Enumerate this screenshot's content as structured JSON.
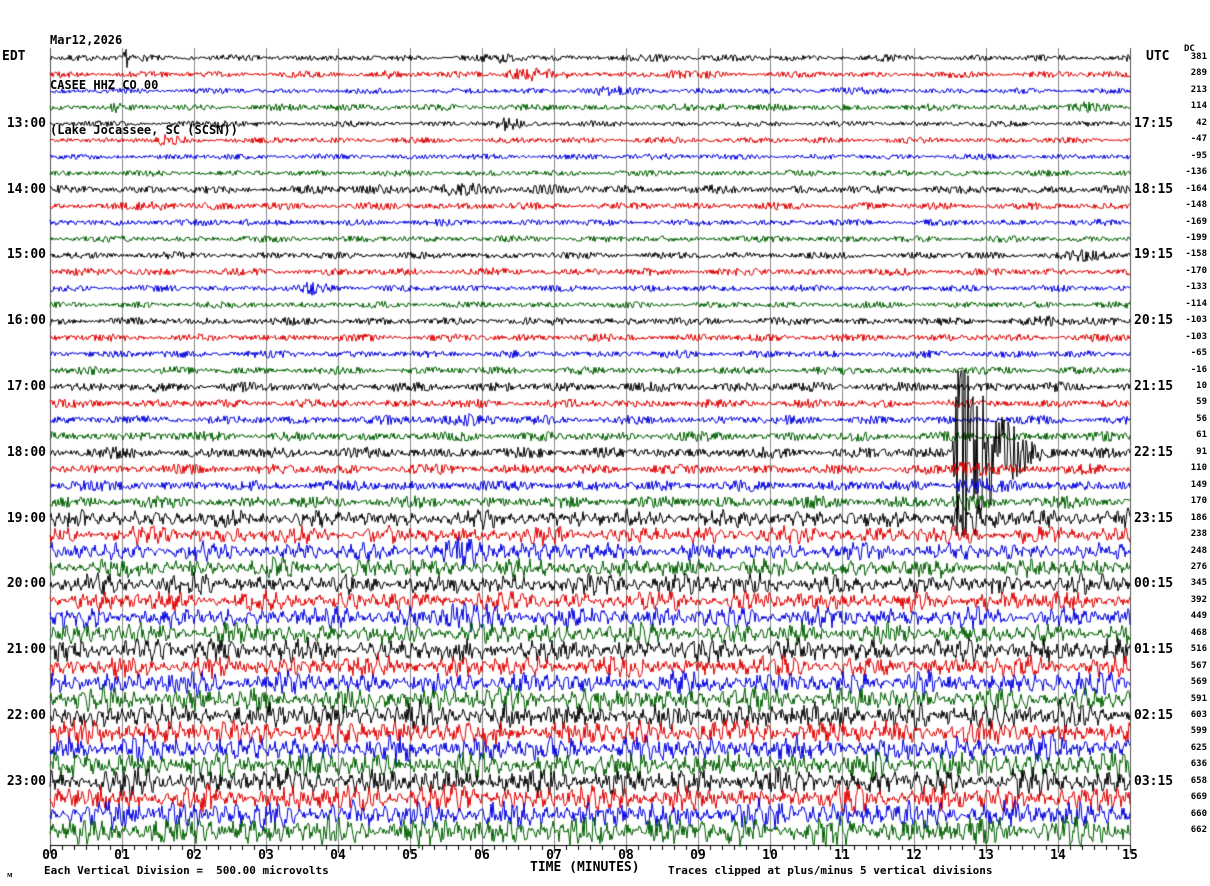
{
  "title": {
    "date": "Mar12,2026",
    "station": "CASEE HHZ CO 00",
    "location": "(Lake Jocassee, SC (SCSN))"
  },
  "axes": {
    "left_header": "EDT",
    "right_header": "UTC",
    "dc_header": "DC",
    "x_title": "TIME (MINUTES)",
    "x_tick_labels": [
      "00",
      "01",
      "02",
      "03",
      "04",
      "05",
      "06",
      "07",
      "08",
      "09",
      "10",
      "11",
      "12",
      "13",
      "14",
      "15"
    ]
  },
  "footer": {
    "scale": "Each Vertical Division =  500.00 microvolts",
    "clip": "Traces clipped at plus/minus 5 vertical divisions",
    "watermark": "ᴍ"
  },
  "colors": {
    "trace_cycle": [
      "#000000",
      "#e00000",
      "#0000e0",
      "#006000"
    ],
    "grid": "#8a8a8a",
    "border": "#555555",
    "axis": "#000000",
    "background": "#ffffff"
  },
  "chart_data": {
    "type": "line",
    "subtype": "helicorder-seismogram",
    "title": "CASEE HHZ CO 00 (Lake Jocassee, SC (SCSN)) Mar12,2026",
    "xlabel": "TIME (MINUTES)",
    "x_range": [
      0,
      15
    ],
    "minutes_per_line": 15,
    "lines_per_hour": 4,
    "vertical_division_microvolts": 500.0,
    "clip_divisions": 5,
    "grid": true,
    "local_timezone": "EDT",
    "utc_offset_note": "right labels are UTC end-of-line times",
    "rows": [
      {
        "edt": "",
        "utc": "",
        "dc": "381",
        "amp": 3.0
      },
      {
        "edt": "",
        "utc": "",
        "dc": "289",
        "amp": 3.0
      },
      {
        "edt": "",
        "utc": "",
        "dc": "213",
        "amp": 2.6
      },
      {
        "edt": "",
        "utc": "",
        "dc": "114",
        "amp": 3.0
      },
      {
        "edt": "13:00",
        "utc": "17:15",
        "dc": "42",
        "amp": 2.6
      },
      {
        "edt": "",
        "utc": "",
        "dc": "-47",
        "amp": 2.8
      },
      {
        "edt": "",
        "utc": "",
        "dc": "-95",
        "amp": 2.6
      },
      {
        "edt": "",
        "utc": "",
        "dc": "-136",
        "amp": 2.8
      },
      {
        "edt": "14:00",
        "utc": "18:15",
        "dc": "-164",
        "amp": 3.8
      },
      {
        "edt": "",
        "utc": "",
        "dc": "-148",
        "amp": 3.4
      },
      {
        "edt": "",
        "utc": "",
        "dc": "-169",
        "amp": 3.0
      },
      {
        "edt": "",
        "utc": "",
        "dc": "-199",
        "amp": 3.0
      },
      {
        "edt": "15:00",
        "utc": "19:15",
        "dc": "-158",
        "amp": 3.2
      },
      {
        "edt": "",
        "utc": "",
        "dc": "-170",
        "amp": 3.4
      },
      {
        "edt": "",
        "utc": "",
        "dc": "-133",
        "amp": 3.0
      },
      {
        "edt": "",
        "utc": "",
        "dc": "-114",
        "amp": 3.0
      },
      {
        "edt": "16:00",
        "utc": "20:15",
        "dc": "-103",
        "amp": 3.6
      },
      {
        "edt": "",
        "utc": "",
        "dc": "-103",
        "amp": 3.4
      },
      {
        "edt": "",
        "utc": "",
        "dc": "-65",
        "amp": 3.4
      },
      {
        "edt": "",
        "utc": "",
        "dc": "-16",
        "amp": 3.6
      },
      {
        "edt": "17:00",
        "utc": "21:15",
        "dc": "10",
        "amp": 4.4
      },
      {
        "edt": "",
        "utc": "",
        "dc": "59",
        "amp": 4.0
      },
      {
        "edt": "",
        "utc": "",
        "dc": "56",
        "amp": 4.0
      },
      {
        "edt": "",
        "utc": "",
        "dc": "61",
        "amp": 4.4
      },
      {
        "edt": "18:00",
        "utc": "22:15",
        "dc": "91",
        "amp": 5.0
      },
      {
        "edt": "",
        "utc": "",
        "dc": "110",
        "amp": 4.6
      },
      {
        "edt": "",
        "utc": "",
        "dc": "149",
        "amp": 5.0
      },
      {
        "edt": "",
        "utc": "",
        "dc": "170",
        "amp": 5.4
      },
      {
        "edt": "19:00",
        "utc": "23:15",
        "dc": "186",
        "amp": 6.0
      },
      {
        "edt": "",
        "utc": "",
        "dc": "238",
        "amp": 6.0
      },
      {
        "edt": "",
        "utc": "",
        "dc": "248",
        "amp": 6.0
      },
      {
        "edt": "",
        "utc": "",
        "dc": "276",
        "amp": 6.4
      },
      {
        "edt": "20:00",
        "utc": "00:15",
        "dc": "345",
        "amp": 7.0
      },
      {
        "edt": "",
        "utc": "",
        "dc": "392",
        "amp": 6.6
      },
      {
        "edt": "",
        "utc": "",
        "dc": "449",
        "amp": 7.0
      },
      {
        "edt": "",
        "utc": "",
        "dc": "468",
        "amp": 7.0
      },
      {
        "edt": "21:00",
        "utc": "01:15",
        "dc": "516",
        "amp": 7.8
      },
      {
        "edt": "",
        "utc": "",
        "dc": "567",
        "amp": 7.4
      },
      {
        "edt": "",
        "utc": "",
        "dc": "569",
        "amp": 7.8
      },
      {
        "edt": "",
        "utc": "",
        "dc": "591",
        "amp": 8.0
      },
      {
        "edt": "22:00",
        "utc": "02:15",
        "dc": "603",
        "amp": 8.6
      },
      {
        "edt": "",
        "utc": "",
        "dc": "599",
        "amp": 8.2
      },
      {
        "edt": "",
        "utc": "",
        "dc": "625",
        "amp": 8.4
      },
      {
        "edt": "",
        "utc": "",
        "dc": "636",
        "amp": 8.8
      },
      {
        "edt": "23:00",
        "utc": "03:15",
        "dc": "658",
        "amp": 8.8
      },
      {
        "edt": "",
        "utc": "",
        "dc": "669",
        "amp": 8.8
      },
      {
        "edt": "",
        "utc": "",
        "dc": "660",
        "amp": 9.2
      },
      {
        "edt": "",
        "utc": "",
        "dc": "662",
        "amp": 9.6
      }
    ],
    "events": [
      {
        "row": 0,
        "t": 1.05,
        "m": 6.0,
        "aw": 0.02,
        "dw": 0.03
      },
      {
        "row": 0,
        "t": 6.3,
        "m": 2.2,
        "aw": 0.15,
        "dw": 0.2
      },
      {
        "row": 0,
        "t": 8.6,
        "m": 1.8,
        "aw": 0.2,
        "dw": 0.25
      },
      {
        "row": 1,
        "t": 4.7,
        "m": 1.8,
        "aw": 0.05,
        "dw": 0.08
      },
      {
        "row": 1,
        "t": 6.45,
        "m": 4.0,
        "aw": 0.12,
        "dw": 0.3
      },
      {
        "row": 1,
        "t": 8.65,
        "m": 2.2,
        "aw": 0.1,
        "dw": 0.2
      },
      {
        "row": 2,
        "t": 7.6,
        "m": 2.0,
        "aw": 0.3,
        "dw": 0.5
      },
      {
        "row": 2,
        "t": 10.9,
        "m": 1.9,
        "aw": 0.2,
        "dw": 0.3
      },
      {
        "row": 3,
        "t": 0.9,
        "m": 2.0,
        "aw": 0.05,
        "dw": 0.1
      },
      {
        "row": 3,
        "t": 3.9,
        "m": 2.2,
        "aw": 0.15,
        "dw": 0.25
      },
      {
        "row": 3,
        "t": 9.4,
        "m": 2.2,
        "aw": 0.15,
        "dw": 0.3
      },
      {
        "row": 3,
        "t": 14.3,
        "m": 2.0,
        "aw": 0.2,
        "dw": 0.3
      },
      {
        "row": 4,
        "t": 2.35,
        "m": 2.2,
        "aw": 0.1,
        "dw": 0.2
      },
      {
        "row": 4,
        "t": 6.3,
        "m": 2.6,
        "aw": 0.12,
        "dw": 0.3
      },
      {
        "row": 5,
        "t": 1.6,
        "m": 2.0,
        "aw": 0.1,
        "dw": 0.2
      },
      {
        "row": 6,
        "t": 8.5,
        "m": 1.8,
        "aw": 0.15,
        "dw": 0.25
      },
      {
        "row": 8,
        "t": 5.5,
        "m": 1.7,
        "aw": 1.2,
        "dw": 1.5
      },
      {
        "row": 9,
        "t": 1.5,
        "m": 2.0,
        "aw": 0.15,
        "dw": 0.3
      },
      {
        "row": 10,
        "t": 2.7,
        "m": 3.0,
        "aw": 0.05,
        "dw": 0.1
      },
      {
        "row": 12,
        "t": 14.5,
        "m": 1.9,
        "aw": 0.3,
        "dw": 0.4
      },
      {
        "row": 14,
        "t": 3.65,
        "m": 2.4,
        "aw": 0.12,
        "dw": 0.25
      },
      {
        "row": 16,
        "t": 14.0,
        "m": 1.8,
        "aw": 0.3,
        "dw": 0.5
      },
      {
        "row": 22,
        "t": 5.6,
        "m": 1.8,
        "aw": 0.4,
        "dw": 0.6
      },
      {
        "row": 24,
        "t": 12.62,
        "m": 60.0,
        "aw": 0.05,
        "dw": 0.28
      },
      {
        "row": 25,
        "t": 12.63,
        "m": 2.8,
        "aw": 0.08,
        "dw": 0.3
      },
      {
        "row": 26,
        "t": 12.62,
        "m": 2.2,
        "aw": 0.1,
        "dw": 0.3
      },
      {
        "row": 27,
        "t": 12.62,
        "m": 1.8,
        "aw": 0.1,
        "dw": 0.3
      },
      {
        "row": 28,
        "t": 12.62,
        "m": 2.6,
        "aw": 0.08,
        "dw": 0.25
      },
      {
        "row": 30,
        "t": 5.8,
        "m": 1.8,
        "aw": 0.3,
        "dw": 0.5
      },
      {
        "row": 34,
        "t": 5.65,
        "m": 2.2,
        "aw": 0.15,
        "dw": 0.3
      },
      {
        "row": 40,
        "t": 13.3,
        "m": 1.5,
        "aw": 0.4,
        "dw": 0.6
      }
    ]
  }
}
